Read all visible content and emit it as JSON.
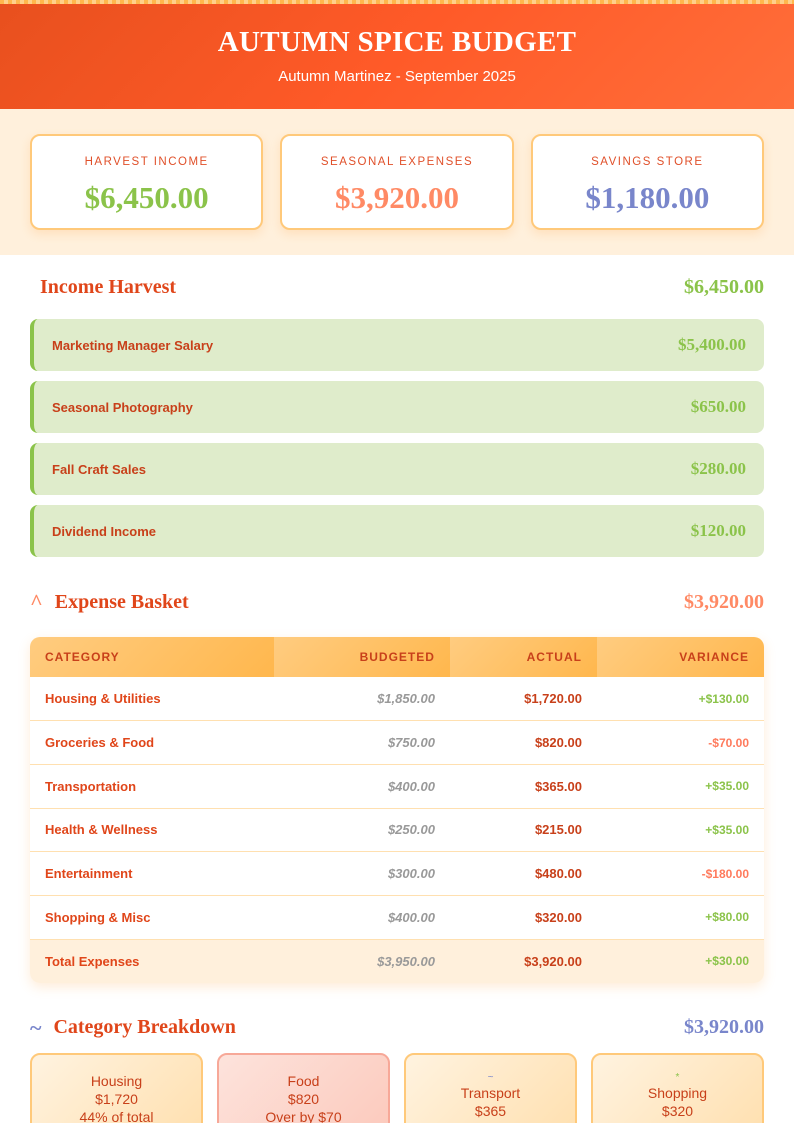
{
  "header": {
    "title": "AUTUMN SPICE BUDGET",
    "subtitle": "Autumn Martinez - September 2025"
  },
  "summary": [
    {
      "label": "HARVEST INCOME",
      "value": "$6,450.00",
      "color": "#8bc34a"
    },
    {
      "label": "SEASONAL EXPENSES",
      "value": "$3,920.00",
      "color": "#ff8a65"
    },
    {
      "label": "SAVINGS STORE",
      "value": "$1,180.00",
      "color": "#7986cb"
    }
  ],
  "income": {
    "title": "Income Harvest",
    "total": "$6,450.00",
    "items": [
      {
        "name": "Marketing Manager Salary",
        "amount": "$5,400.00"
      },
      {
        "name": "Seasonal Photography",
        "amount": "$650.00"
      },
      {
        "name": "Fall Craft Sales",
        "amount": "$280.00"
      },
      {
        "name": "Dividend Income",
        "amount": "$120.00"
      }
    ]
  },
  "expenses": {
    "icon": "^",
    "title": "Expense Basket",
    "total": "$3,920.00",
    "columns": [
      "CATEGORY",
      "BUDGETED",
      "ACTUAL",
      "VARIANCE"
    ],
    "rows": [
      [
        "Housing & Utilities",
        "$1,850.00",
        "$1,720.00",
        "+$130.00"
      ],
      [
        "Groceries & Food",
        "$750.00",
        "$820.00",
        "-$70.00"
      ],
      [
        "Transportation",
        "$400.00",
        "$365.00",
        "+$35.00"
      ],
      [
        "Health & Wellness",
        "$250.00",
        "$215.00",
        "+$35.00"
      ],
      [
        "Entertainment",
        "$300.00",
        "$480.00",
        "-$180.00"
      ],
      [
        "Shopping & Misc",
        "$400.00",
        "$320.00",
        "+$80.00"
      ]
    ],
    "total_row": [
      "Total Expenses",
      "$3,950.00",
      "$3,920.00",
      "+$30.00"
    ]
  },
  "breakdown": {
    "icon": "~",
    "title": "Category Breakdown",
    "total": "$3,920.00",
    "cards": [
      {
        "icon": "",
        "name": "Housing",
        "amount": "$1,720",
        "note": "44% of total"
      },
      {
        "icon": "",
        "name": "Food",
        "amount": "$820",
        "note": "Over by $70"
      },
      {
        "icon": "~",
        "name": "Transport",
        "amount": "$365",
        "note": ""
      },
      {
        "icon": "*",
        "name": "Shopping",
        "amount": "$320",
        "note": ""
      }
    ]
  }
}
